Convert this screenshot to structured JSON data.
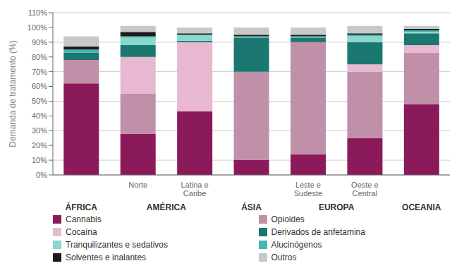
{
  "chart_data": {
    "type": "bar",
    "stacked": true,
    "grid": true,
    "legend": "bottom",
    "y_label": "Demanda de tratamento (%)",
    "categories": [
      null,
      "Norte",
      "Latina e\nCaribe",
      null,
      "Leste e\nSudeste",
      "Oeste e\nCentral",
      null
    ],
    "groups": [
      "ÁFRICA",
      "AMÉRICA",
      "AMÉRICA",
      "ÁSIA",
      "EUROPA",
      "EUROPA",
      "OCEANIA"
    ],
    "ylim": [
      0,
      110
    ],
    "yticks": [
      {
        "value": 0,
        "label": "0%"
      },
      {
        "value": 10,
        "label": "10%"
      },
      {
        "value": 20,
        "label": "20%"
      },
      {
        "value": 30,
        "label": "30%"
      },
      {
        "value": 40,
        "label": "40%"
      },
      {
        "value": 50,
        "label": "50%"
      },
      {
        "value": 60,
        "label": "60%"
      },
      {
        "value": 70,
        "label": "70%"
      },
      {
        "value": 80,
        "label": "80%"
      },
      {
        "value": 90,
        "label": "90%"
      },
      {
        "value": 100,
        "label": "100%"
      },
      {
        "value": 110,
        "label": "110%"
      }
    ],
    "series": [
      {
        "name": "Cannabis",
        "color": "#8B1A5A",
        "values": [
          62,
          28,
          43,
          10,
          14,
          25,
          48
        ]
      },
      {
        "name": "Opioides",
        "color": "#C090A8",
        "values": [
          16,
          27,
          0,
          60,
          76,
          45,
          35
        ]
      },
      {
        "name": "Cocaína",
        "color": "#E8B8D0",
        "values": [
          0,
          25,
          47,
          0,
          0,
          5,
          5
        ]
      },
      {
        "name": "Derivados de anfetamina",
        "color": "#1A7870",
        "values": [
          5,
          8,
          1,
          23,
          3,
          15,
          8
        ]
      },
      {
        "name": "Tranquilizantes e sedativos",
        "color": "#88D8D0",
        "values": [
          0,
          5,
          4,
          0,
          0,
          4,
          1
        ]
      },
      {
        "name": "Alucinógenos",
        "color": "#40B8B0",
        "values": [
          2,
          1,
          0,
          1,
          1,
          1,
          1
        ]
      },
      {
        "name": "Solventes e inalantes",
        "color": "#1C1C1C",
        "values": [
          2,
          3,
          1,
          1,
          1,
          1,
          1
        ]
      },
      {
        "name": "Outros",
        "color": "#C8C8C8",
        "values": [
          7,
          4,
          4,
          5,
          5,
          5,
          2
        ]
      }
    ]
  }
}
